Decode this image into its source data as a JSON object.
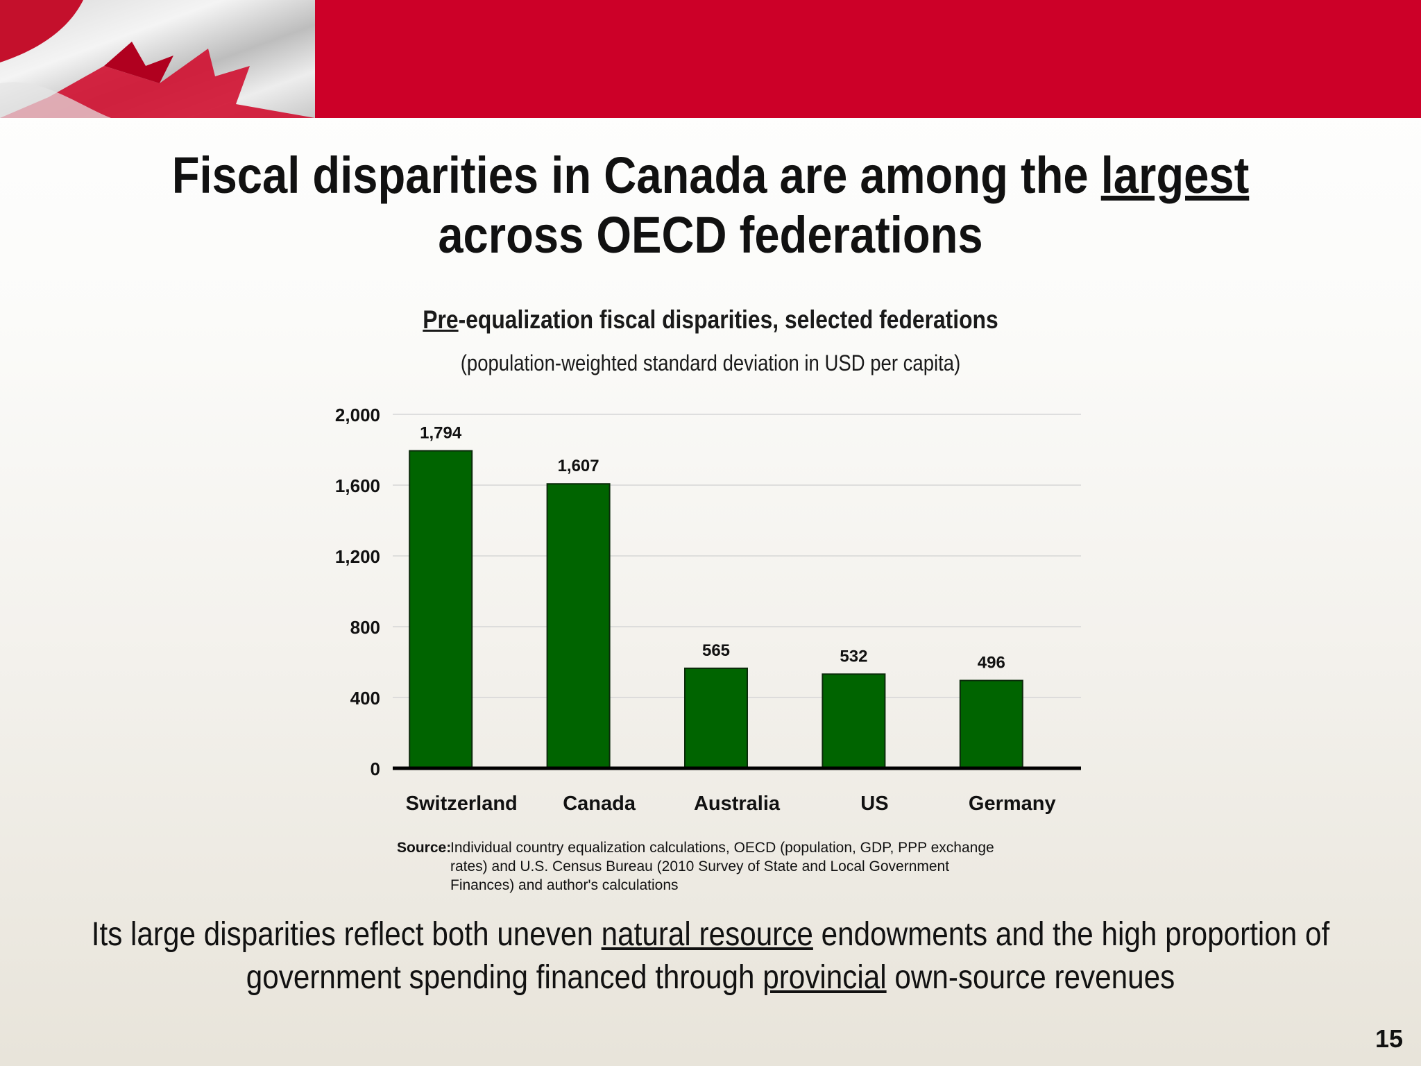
{
  "slide": {
    "title_part1": "Fiscal disparities in Canada are among the ",
    "title_emphasis": "largest",
    "title_part2": "across OECD federations",
    "page_number": "15"
  },
  "chart_data": {
    "type": "bar",
    "title_prefix": "Pre",
    "title_rest": "-equalization fiscal disparities, selected federations",
    "subtitle": "(population-weighted standard deviation in USD per capita)",
    "categories": [
      "Switzerland",
      "Canada",
      "Australia",
      "US",
      "Germany"
    ],
    "values": [
      1794,
      1607,
      565,
      532,
      496
    ],
    "value_labels": [
      "1,794",
      "1,607",
      "565",
      "532",
      "496"
    ],
    "yticks": [
      0,
      400,
      800,
      1200,
      1600,
      2000
    ],
    "ytick_labels": [
      "0",
      "400",
      "800",
      "1,200",
      "1,600",
      "2,000"
    ],
    "ylim": [
      0,
      2000
    ],
    "bar_color": "#006400",
    "grid": true,
    "legend": "none"
  },
  "source": {
    "label": "Source:",
    "text": "Individual country equalization calculations, OECD (population, GDP, PPP exchange rates) and U.S. Census Bureau (2010 Survey of State and Local Government Finances) and author's calculations"
  },
  "footer": {
    "part1": "Its large disparities reflect both uneven ",
    "link1": "natural resource",
    "part2": " endowments and the high proportion of",
    "part3": "government spending financed through ",
    "link2": "provincial",
    "part4": " own-source revenues"
  },
  "colors": {
    "header_red": "#cc0028",
    "bar_green": "#006400"
  }
}
